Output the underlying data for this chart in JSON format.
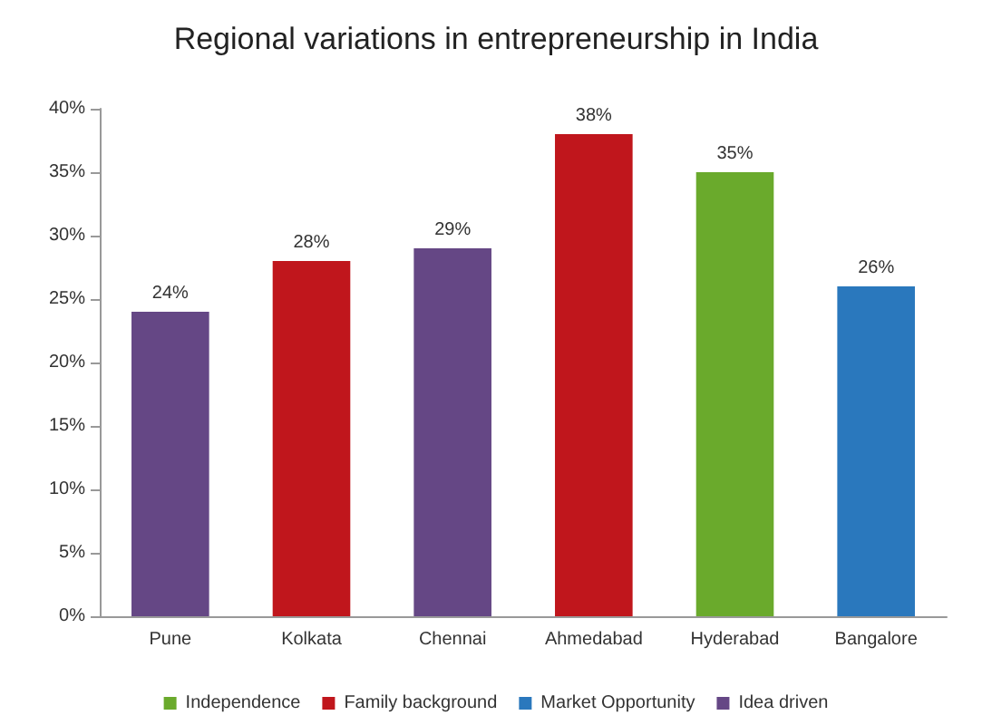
{
  "chart_data": {
    "type": "bar",
    "title": "Regional variations in entrepreneurship in India",
    "categories": [
      "Pune",
      "Kolkata",
      "Chennai",
      "Ahmedabad",
      "Hyderabad",
      "Bangalore"
    ],
    "stacked": true,
    "series": [
      {
        "name": "Independence",
        "color": "#6aaa2c",
        "values": [
          null,
          null,
          null,
          null,
          35,
          null
        ],
        "value_labels": [
          null,
          null,
          null,
          null,
          "35%",
          null
        ]
      },
      {
        "name": "Family background",
        "color": "#c0161c",
        "values": [
          null,
          28,
          null,
          38,
          null,
          null
        ],
        "value_labels": [
          null,
          "28%",
          null,
          "38%",
          null,
          null
        ]
      },
      {
        "name": "Market Opportunity",
        "color": "#2a78bd",
        "values": [
          null,
          null,
          null,
          null,
          null,
          26
        ],
        "value_labels": [
          null,
          null,
          null,
          null,
          null,
          "26%"
        ]
      },
      {
        "name": "Idea driven",
        "color": "#654785",
        "values": [
          24,
          null,
          29,
          null,
          null,
          null
        ],
        "value_labels": [
          "24%",
          null,
          "29%",
          null,
          null,
          null
        ]
      }
    ],
    "ylim": [
      0,
      40
    ],
    "yticks": [
      {
        "value": 0,
        "label": "0%"
      },
      {
        "value": 5,
        "label": "5%"
      },
      {
        "value": 10,
        "label": "10%"
      },
      {
        "value": 15,
        "label": "15%"
      },
      {
        "value": 20,
        "label": "20%"
      },
      {
        "value": 25,
        "label": "25%"
      },
      {
        "value": 30,
        "label": "30%"
      },
      {
        "value": 35,
        "label": "35%"
      },
      {
        "value": 40,
        "label": "40%"
      }
    ],
    "grid": false,
    "legend": "bottom"
  }
}
